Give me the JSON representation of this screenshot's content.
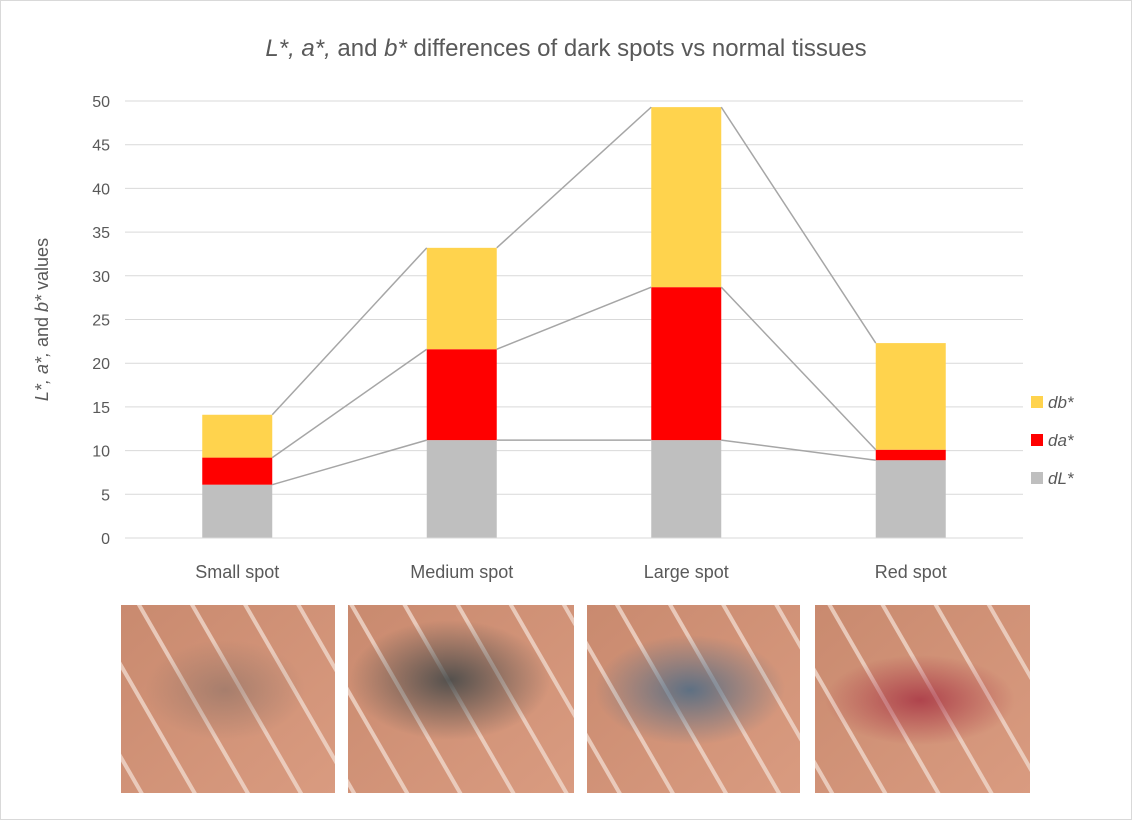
{
  "chart_data": {
    "type": "stacked_bar",
    "title_parts": [
      {
        "text": "L*, a*,",
        "italic": true
      },
      {
        "text": " and ",
        "italic": false
      },
      {
        "text": "b*",
        "italic": true
      },
      {
        "text": " differences of dark spots vs normal tissues",
        "italic": false
      }
    ],
    "ylabel_parts": [
      {
        "text": "L*, a*,",
        "italic": true
      },
      {
        "text": " and ",
        "italic": false
      },
      {
        "text": "b*",
        "italic": true
      },
      {
        "text": " values",
        "italic": false
      }
    ],
    "categories": [
      "Small spot",
      "Medium spot",
      "Large spot",
      "Red spot"
    ],
    "series": [
      {
        "name": "dL*",
        "color": "#bfbfbf",
        "values": [
          6.1,
          11.2,
          11.2,
          8.9
        ]
      },
      {
        "name": "da*",
        "color": "#ff0000",
        "values": [
          3.1,
          10.4,
          17.5,
          1.2
        ]
      },
      {
        "name": "db*",
        "color": "#ffd34d",
        "values": [
          4.9,
          11.6,
          20.6,
          12.2
        ]
      }
    ],
    "ylim": [
      0,
      50
    ],
    "yticks": [
      0,
      5,
      10,
      15,
      20,
      25,
      30,
      35,
      40,
      45,
      50
    ],
    "grid": true,
    "series_lines": true,
    "legend": "right"
  }
}
